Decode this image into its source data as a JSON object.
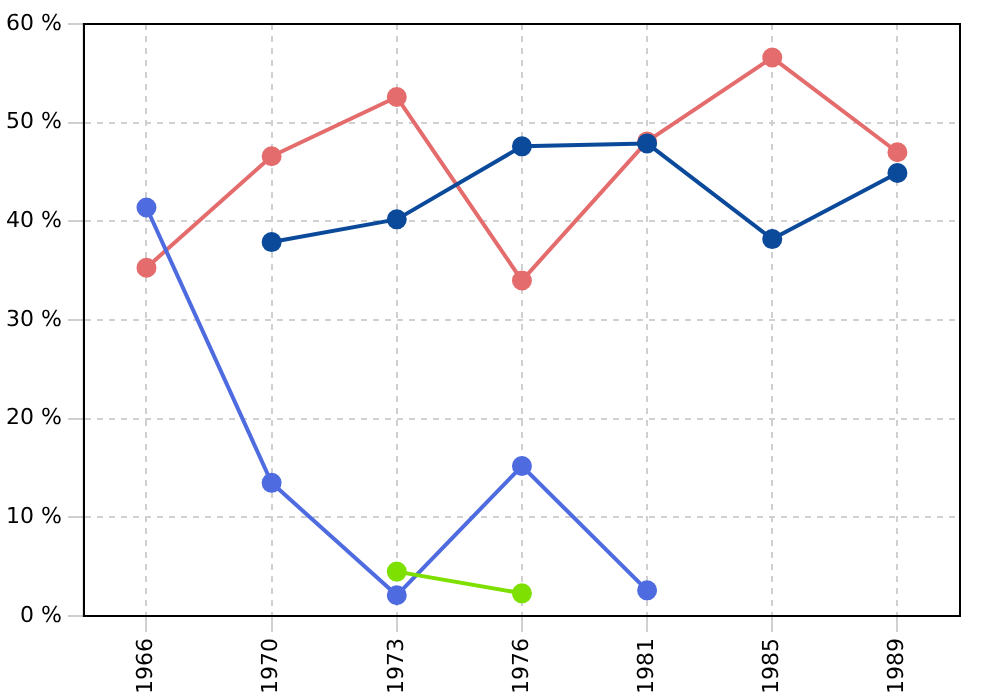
{
  "chart_data": {
    "type": "line",
    "categories": [
      "1966",
      "1970",
      "1973",
      "1976",
      "1981",
      "1985",
      "1989"
    ],
    "series": [
      {
        "color": "#e46c6c",
        "values": [
          35.3,
          46.6,
          52.6,
          34.0,
          48.1,
          56.6,
          47.0
        ]
      },
      {
        "color": "#0b4a9a",
        "values": [
          null,
          37.9,
          40.2,
          47.6,
          47.9,
          38.2,
          44.9
        ]
      },
      {
        "color": "#4f6be0",
        "values": [
          41.4,
          13.5,
          2.1,
          15.2,
          2.6,
          null,
          null
        ]
      },
      {
        "color": "#7ee000",
        "values": [
          null,
          null,
          4.5,
          2.3,
          null,
          null,
          null
        ]
      }
    ],
    "ylim": [
      0,
      60
    ],
    "yticks": [
      {
        "value": 0,
        "label": "0 %"
      },
      {
        "value": 10,
        "label": "10 %"
      },
      {
        "value": 20,
        "label": "20 %"
      },
      {
        "value": 30,
        "label": "30 %"
      },
      {
        "value": 40,
        "label": "40 %"
      },
      {
        "value": 50,
        "label": "50 %"
      },
      {
        "value": 60,
        "label": "60 %"
      }
    ],
    "grid": true,
    "legend": false,
    "marker": "circle",
    "line_style": "solid"
  }
}
